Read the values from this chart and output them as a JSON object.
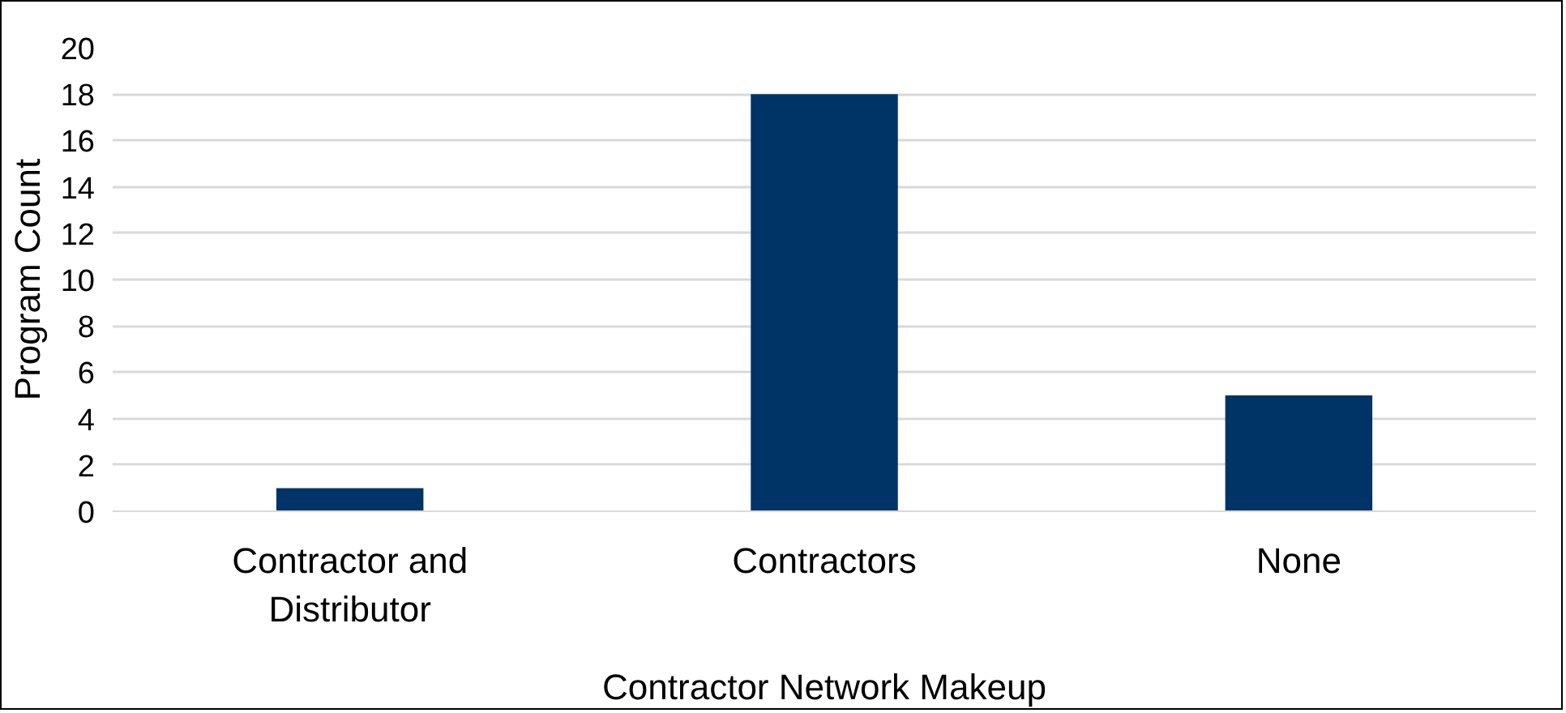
{
  "chart_data": {
    "type": "bar",
    "xlabel": "Contractor Network Makeup",
    "ylabel": "Program Count",
    "categories": [
      "Contractor and Distributor",
      "Contractors",
      "None"
    ],
    "values": [
      1,
      18,
      5
    ],
    "color": "#003366",
    "ylim": [
      0,
      20
    ],
    "yticks": [
      0,
      2,
      4,
      6,
      8,
      10,
      12,
      14,
      16,
      18,
      20
    ],
    "grid": "y"
  }
}
